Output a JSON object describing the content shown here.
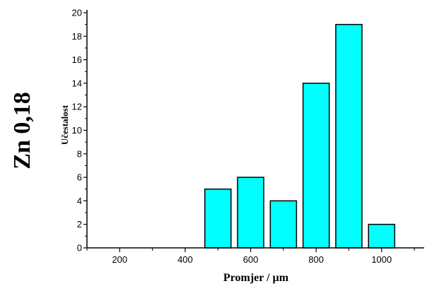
{
  "side_label": "Zn 0,18",
  "chart_data": {
    "type": "bar",
    "title": "",
    "xlabel": "Promjer / µm",
    "ylabel": "Učestalost",
    "x": [
      500,
      600,
      700,
      800,
      900,
      1000
    ],
    "values": [
      5,
      6,
      4,
      14,
      19,
      2
    ],
    "bin_width": 80,
    "xlim": [
      100,
      1130
    ],
    "ylim": [
      0,
      20
    ],
    "x_ticks": [
      200,
      400,
      600,
      800,
      1000
    ],
    "y_ticks": [
      0,
      2,
      4,
      6,
      8,
      10,
      12,
      14,
      16,
      18,
      20
    ],
    "bar_color": "#00ffff",
    "grid": false,
    "legend": "none"
  }
}
